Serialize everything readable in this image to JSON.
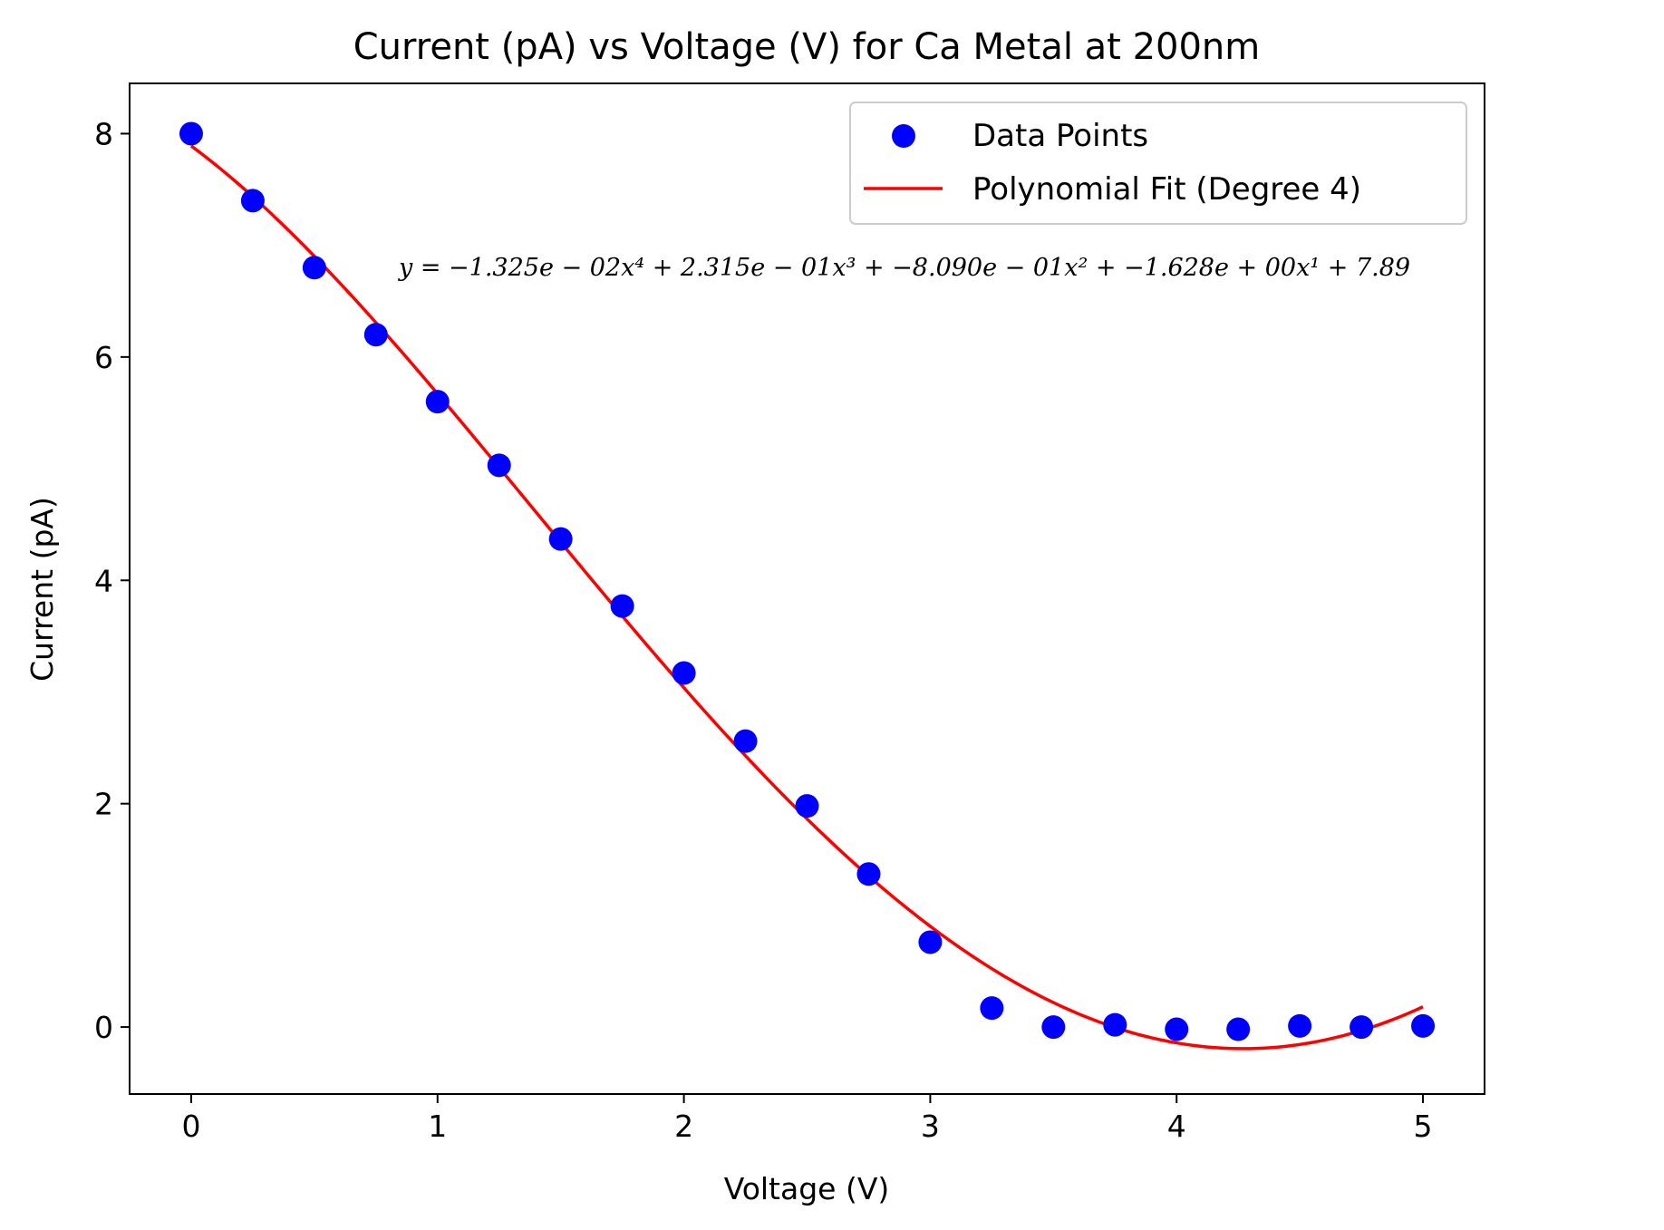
{
  "chart_data": {
    "type": "scatter",
    "title": "Current (pA) vs Voltage (V) for Ca Metal at 200nm",
    "xlabel": "Voltage (V)",
    "ylabel": "Current (pA)",
    "xlim": [
      -0.25,
      5.25
    ],
    "ylim": [
      -0.6,
      8.45
    ],
    "xticks": [
      0,
      1,
      2,
      3,
      4,
      5
    ],
    "xtick_labels": [
      "0",
      "1",
      "2",
      "3",
      "4",
      "5"
    ],
    "yticks": [
      0,
      2,
      4,
      6,
      8
    ],
    "ytick_labels": [
      "0",
      "2",
      "4",
      "6",
      "8"
    ],
    "grid": false,
    "legend_position": "top-right",
    "series": [
      {
        "name": "Data Points",
        "kind": "scatter",
        "color": "#0000ff",
        "x": [
          0,
          0.25,
          0.5,
          0.75,
          1.0,
          1.25,
          1.5,
          1.75,
          2.0,
          2.25,
          2.5,
          2.75,
          3.0,
          3.25,
          3.5,
          3.75,
          4.0,
          4.25,
          4.5,
          4.75,
          5.0
        ],
        "y": [
          8.0,
          7.4,
          6.8,
          6.2,
          5.6,
          5.03,
          4.37,
          3.77,
          3.17,
          2.56,
          1.98,
          1.37,
          0.76,
          0.17,
          0.0,
          0.02,
          -0.02,
          -0.02,
          0.01,
          0.0,
          0.01
        ]
      },
      {
        "name": "Polynomial Fit (Degree 4)",
        "kind": "line",
        "color": "#ff0000",
        "coefficients": [
          -0.01325,
          0.2315,
          -0.809,
          -1.628,
          7.89
        ],
        "x_range": [
          0,
          5
        ]
      }
    ],
    "annotation": "y = −1.325e − 02x⁴ + 2.315e − 01x³ + −8.090e − 01x² + −1.628e + 00x¹ + 7.89"
  }
}
